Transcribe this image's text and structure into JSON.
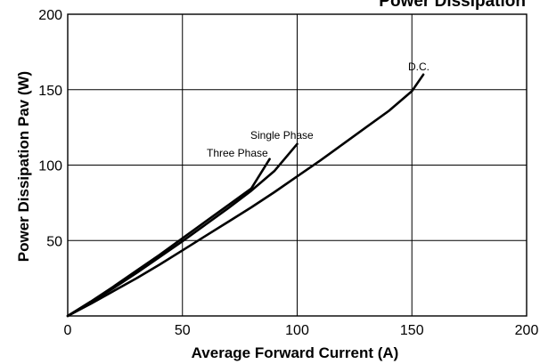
{
  "chart_data": {
    "type": "line",
    "title": "Power Dissipation",
    "xlabel": "Average Forward Current (A)",
    "ylabel": "Power Dissipation Pav (W)",
    "xlim": [
      0,
      200
    ],
    "ylim": [
      0,
      200
    ],
    "x_ticks": [
      0,
      50,
      100,
      150,
      200
    ],
    "y_ticks": [
      50,
      100,
      150,
      200
    ],
    "grid": true,
    "series": [
      {
        "name": "Three Phase",
        "x": [
          0,
          10,
          20,
          30,
          40,
          50,
          60,
          70,
          80,
          88
        ],
        "y": [
          0,
          9.5,
          19.5,
          30,
          40.5,
          51.5,
          62.5,
          73.5,
          84.5,
          104
        ]
      },
      {
        "name": "Single Phase",
        "x": [
          0,
          10,
          20,
          30,
          40,
          50,
          60,
          70,
          80,
          90,
          100
        ],
        "y": [
          0,
          9,
          18.5,
          28.5,
          39,
          49.5,
          60.5,
          71.5,
          83,
          96,
          114
        ]
      },
      {
        "name": "D.C.",
        "x": [
          0,
          10,
          20,
          30,
          40,
          50,
          60,
          70,
          80,
          90,
          100,
          110,
          120,
          130,
          140,
          150,
          155
        ],
        "y": [
          0,
          8,
          16.5,
          25,
          34,
          43.5,
          53,
          62.5,
          72,
          82,
          92.5,
          103,
          114,
          125,
          136,
          149,
          160
        ]
      }
    ],
    "series_label_text": {
      "three_phase": "Three Phase",
      "single_phase": "Single Phase",
      "dc": "D.C."
    }
  }
}
